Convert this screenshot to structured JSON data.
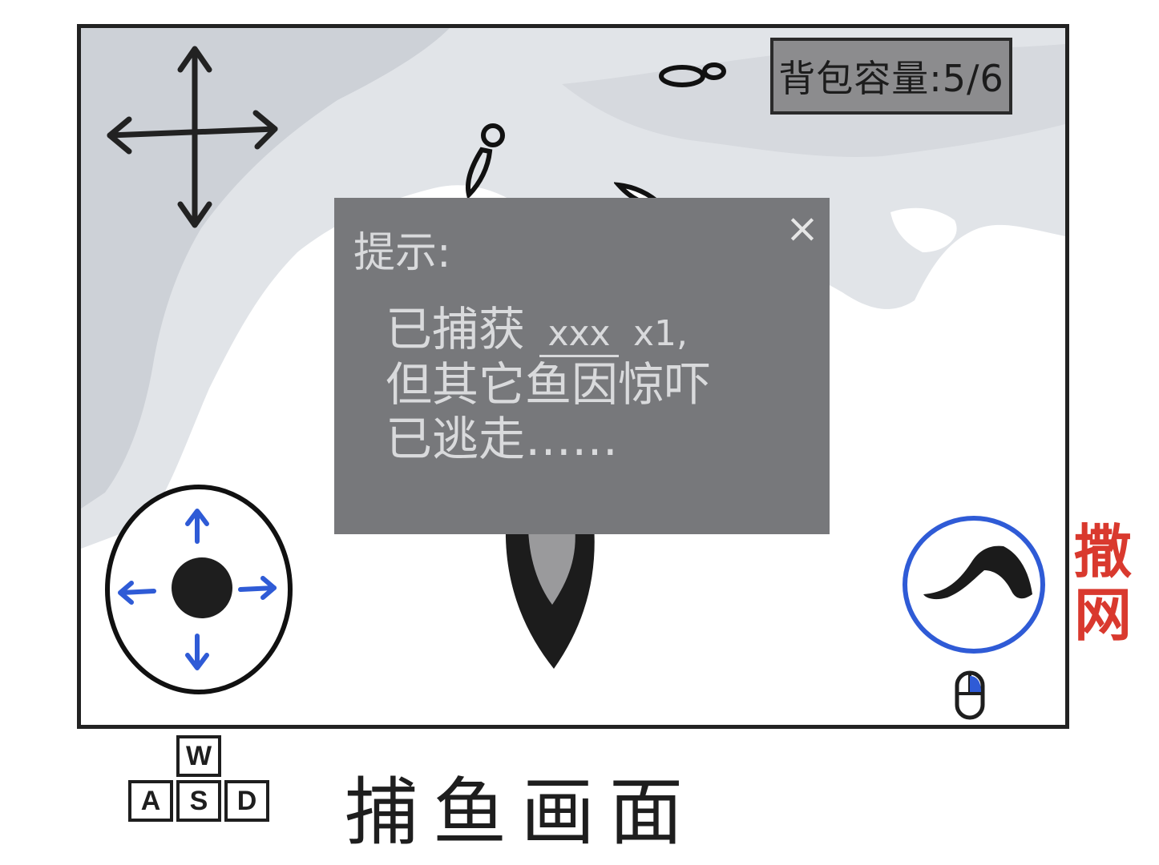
{
  "hud": {
    "backpack_capacity": "背包容量:5/6"
  },
  "hint_dialog": {
    "title": "提示:",
    "close_symbol": "×",
    "line1_prefix": "已捕获",
    "line1_blank": "xxx",
    "line1_suffix": "x1,",
    "line2": "但其它鱼因惊吓",
    "line3": "已逃走……"
  },
  "actions": {
    "cast_net_label": "撒网"
  },
  "keys": {
    "w": "W",
    "a": "A",
    "s": "S",
    "d": "D"
  },
  "caption": "捕鱼画面",
  "colors": {
    "water_light": "#dfe2e6",
    "water_mid": "#c8ccd2",
    "dialog_bg": "#77787b",
    "dialog_text": "#d9dadc",
    "panel_bg": "#8c8c8e",
    "arrow_blue": "#2f5bd6",
    "net_ring": "#2f5bd6",
    "net_label": "#d9392e"
  },
  "icons": [
    "move-arrows-icon",
    "joystick-icon",
    "net-icon",
    "mouse-icon",
    "fish-icon",
    "boat-icon"
  ]
}
